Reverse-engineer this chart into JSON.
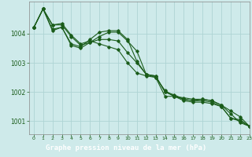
{
  "title": "Graphe pression niveau de la mer (hPa)",
  "background_color": "#ceeaea",
  "plot_bg_color": "#ceeaea",
  "label_bg_color": "#2d6e2d",
  "grid_color": "#aed4d4",
  "line_color": "#1a5c1a",
  "label_text_color": "#ffffff",
  "tick_color": "#1a5c1a",
  "xlim": [
    -0.5,
    23
  ],
  "ylim": [
    1000.55,
    1005.1
  ],
  "yticks": [
    1001,
    1002,
    1003,
    1004
  ],
  "xticks": [
    0,
    1,
    2,
    3,
    4,
    5,
    6,
    7,
    8,
    9,
    10,
    11,
    12,
    13,
    14,
    15,
    16,
    17,
    18,
    19,
    20,
    21,
    22,
    23
  ],
  "series": [
    [
      1004.2,
      1004.85,
      1004.3,
      1004.35,
      1003.95,
      1003.65,
      1003.75,
      1003.65,
      1003.55,
      1003.45,
      1003.0,
      1002.65,
      1002.55,
      1002.5,
      1001.85,
      1001.85,
      1001.8,
      1001.75,
      1001.75,
      1001.7,
      1001.55,
      1001.25,
      1000.95,
      1000.82
    ],
    [
      1004.2,
      1004.85,
      1004.3,
      1004.3,
      1003.9,
      1003.6,
      1003.7,
      1003.8,
      1003.8,
      1003.75,
      1003.35,
      1003.0,
      1002.6,
      1002.55,
      1002.0,
      1001.9,
      1001.75,
      1001.7,
      1001.75,
      1001.7,
      1001.55,
      1001.35,
      1001.15,
      1000.82
    ],
    [
      1004.2,
      1004.85,
      1004.15,
      1004.22,
      1003.65,
      1003.55,
      1003.8,
      1004.05,
      1004.1,
      1004.1,
      1003.8,
      1003.05,
      1002.6,
      1002.55,
      1002.0,
      1001.85,
      1001.75,
      1001.7,
      1001.7,
      1001.65,
      1001.5,
      1001.1,
      1001.05,
      1000.82
    ],
    [
      1004.2,
      1004.85,
      1004.1,
      1004.22,
      1003.6,
      1003.5,
      1003.7,
      1003.9,
      1004.05,
      1004.05,
      1003.75,
      1003.4,
      1002.6,
      1002.5,
      1002.05,
      1001.85,
      1001.7,
      1001.65,
      1001.65,
      1001.6,
      1001.5,
      1001.1,
      1001.0,
      1000.82
    ]
  ]
}
